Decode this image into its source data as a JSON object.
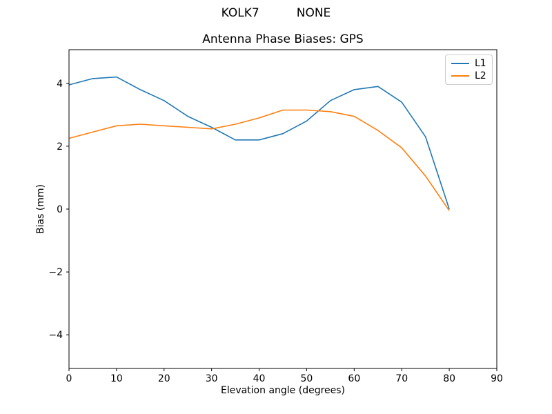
{
  "figure": {
    "background": "#ffffff"
  },
  "suptitle": "KOLK7          NONE",
  "chart_data": {
    "type": "line",
    "title": "Antenna Phase Biases: GPS",
    "xlabel": "Elevation angle (degrees)",
    "ylabel": "Bias (mm)",
    "xlim": [
      0,
      90
    ],
    "ylim": [
      -5.07,
      5.07
    ],
    "xticks": [
      0,
      10,
      20,
      30,
      40,
      50,
      60,
      70,
      80,
      90
    ],
    "yticks": [
      -4,
      -2,
      0,
      2,
      4
    ],
    "grid": false,
    "legend_position": "upper right",
    "x": [
      0,
      5,
      10,
      15,
      20,
      25,
      30,
      35,
      40,
      45,
      50,
      55,
      60,
      65,
      70,
      75,
      80
    ],
    "series": [
      {
        "name": "L1",
        "color": "#1f77b4",
        "values": [
          3.95,
          4.15,
          4.2,
          3.8,
          3.45,
          2.95,
          2.6,
          2.2,
          2.2,
          2.4,
          2.8,
          3.45,
          3.8,
          3.9,
          3.4,
          2.3,
          0.0
        ]
      },
      {
        "name": "L2",
        "color": "#ff7f0e",
        "values": [
          2.25,
          2.45,
          2.65,
          2.7,
          2.65,
          2.6,
          2.55,
          2.7,
          2.9,
          3.15,
          3.15,
          3.1,
          2.95,
          2.5,
          1.95,
          1.05,
          -0.05
        ]
      }
    ],
    "axis_color": "#000000"
  }
}
